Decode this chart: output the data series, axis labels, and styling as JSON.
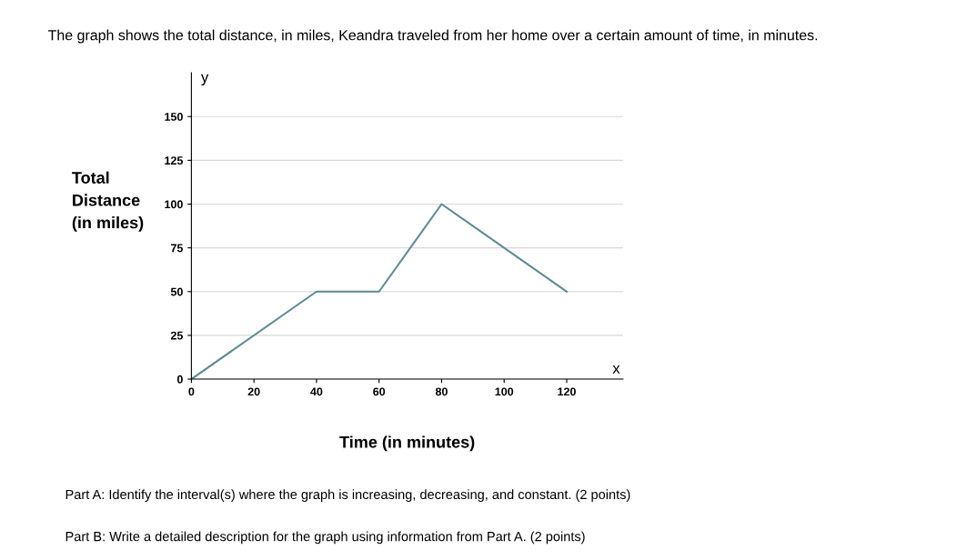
{
  "chart_data": {
    "type": "line",
    "title": "The graph shows the total distance, in miles, Keandra traveled from her home over a certain amount of time, in minutes.",
    "xlabel": "Time (in minutes)",
    "ylabel": "Total\nDistance\n(in miles)",
    "x": [
      0,
      40,
      60,
      80,
      120
    ],
    "series": [
      {
        "color": "#5f8a93",
        "values": [
          0,
          50,
          50,
          100,
          50
        ]
      }
    ],
    "xlim": [
      0,
      138
    ],
    "ylim": [
      0,
      175
    ],
    "xticks": [
      0,
      20,
      40,
      60,
      80,
      100,
      120
    ],
    "yticks": [
      0,
      25,
      50,
      75,
      100,
      125,
      150
    ],
    "grid": "y",
    "marker": "none",
    "line_style": "solid",
    "annotations": [
      "y",
      "x",
      "Part A: Identify the interval(s) where the graph is increasing, decreasing, and constant. (2 points)",
      "Part B: Write a detailed description for the graph using information from Part A. (2 points)"
    ]
  }
}
